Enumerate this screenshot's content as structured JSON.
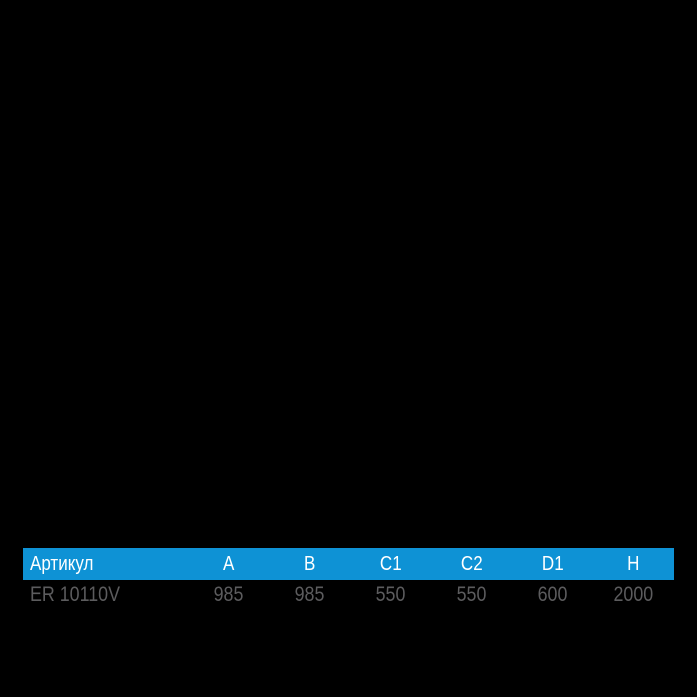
{
  "table": {
    "columns": [
      "Артикул",
      "A",
      "B",
      "C1",
      "C2",
      "D1",
      "H"
    ],
    "rows": [
      [
        "ER 10110V",
        "985",
        "985",
        "550",
        "550",
        "600",
        "2000"
      ]
    ]
  },
  "colors": {
    "background": "#000000",
    "header_bg": "#0e92d5",
    "header_text": "#ffffff",
    "row_text": "#5c5c5e"
  }
}
